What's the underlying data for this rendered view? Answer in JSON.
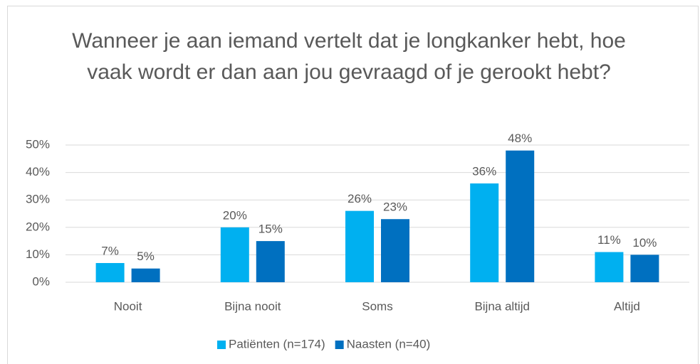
{
  "chart_data": {
    "type": "bar",
    "title": "Wanneer je aan iemand vertelt dat je longkanker hebt, hoe vaak wordt er dan aan jou gevraagd of je gerookt hebt?",
    "categories": [
      "Nooit",
      "Bijna nooit",
      "Soms",
      "Bijna altijd",
      "Altijd"
    ],
    "series": [
      {
        "name": "Patiënten (n=174)",
        "color": "#00b0f0",
        "values": [
          7,
          20,
          26,
          36,
          11
        ],
        "value_labels": [
          "7%",
          "20%",
          "26%",
          "36%",
          "11%"
        ]
      },
      {
        "name": "Naasten (n=40)",
        "color": "#0070c0",
        "values": [
          5,
          15,
          23,
          48,
          10
        ],
        "value_labels": [
          "5%",
          "15%",
          "23%",
          "48%",
          "10%"
        ]
      }
    ],
    "ylim": [
      0,
      50
    ],
    "yticks": [
      {
        "value": 0,
        "label": "0%"
      },
      {
        "value": 10,
        "label": "10%"
      },
      {
        "value": 20,
        "label": "20%"
      },
      {
        "value": 30,
        "label": "30%"
      },
      {
        "value": 40,
        "label": "40%"
      },
      {
        "value": 50,
        "label": "50%"
      }
    ],
    "grid": true,
    "legend": "bottom"
  }
}
